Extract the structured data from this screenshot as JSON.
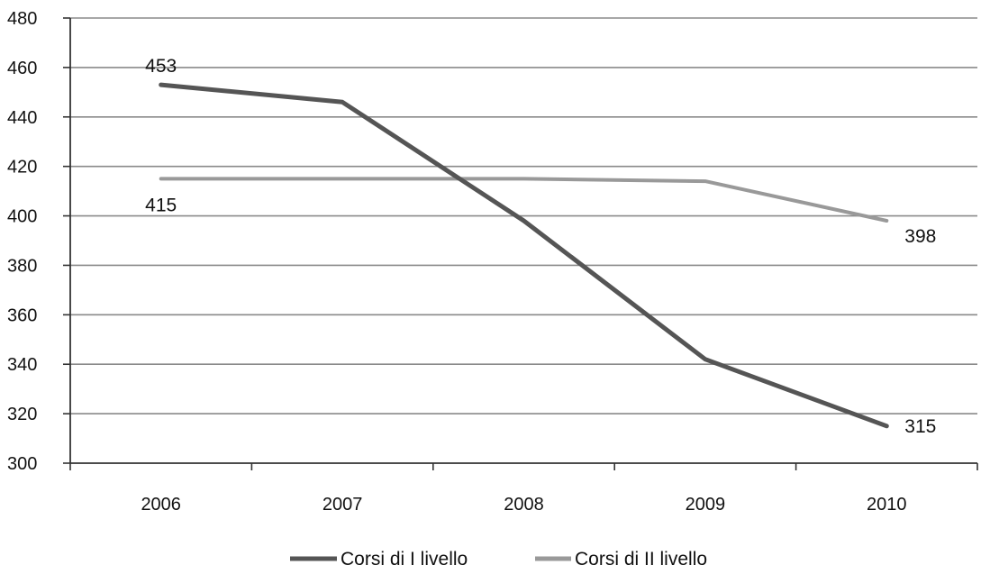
{
  "chart_data": {
    "type": "line",
    "categories": [
      "2006",
      "2007",
      "2008",
      "2009",
      "2010"
    ],
    "series": [
      {
        "name": "Corsi di I livello",
        "values": [
          453,
          446,
          398,
          342,
          315
        ],
        "color": "#555555"
      },
      {
        "name": "Corsi di II livello",
        "values": [
          415,
          415,
          415,
          414,
          398
        ],
        "color": "#999999"
      }
    ],
    "data_labels": [
      {
        "series": 0,
        "index": 0,
        "text": "453",
        "anchor": "above"
      },
      {
        "series": 1,
        "index": 0,
        "text": "415",
        "anchor": "below"
      },
      {
        "series": 1,
        "index": 4,
        "text": "398",
        "anchor": "below-right"
      },
      {
        "series": 0,
        "index": 4,
        "text": "315",
        "anchor": "right"
      }
    ],
    "yticks": [
      "300",
      "320",
      "340",
      "360",
      "380",
      "400",
      "420",
      "440",
      "460",
      "480"
    ],
    "ylim": [
      300,
      480
    ],
    "grid": true,
    "legend": "bottom",
    "title": "",
    "xlabel": "",
    "ylabel": ""
  }
}
